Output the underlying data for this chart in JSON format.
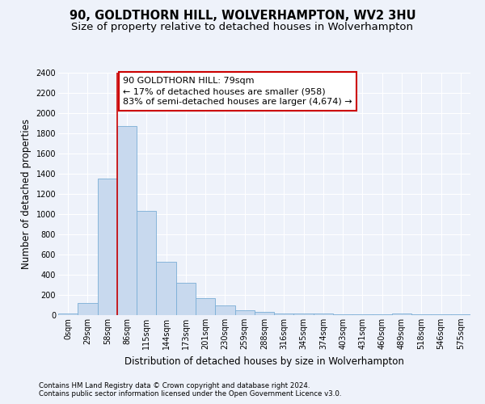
{
  "title": "90, GOLDTHORN HILL, WOLVERHAMPTON, WV2 3HU",
  "subtitle": "Size of property relative to detached houses in Wolverhampton",
  "xlabel": "Distribution of detached houses by size in Wolverhampton",
  "ylabel": "Number of detached properties",
  "footer_line1": "Contains HM Land Registry data © Crown copyright and database right 2024.",
  "footer_line2": "Contains public sector information licensed under the Open Government Licence v3.0.",
  "bar_labels": [
    "0sqm",
    "29sqm",
    "58sqm",
    "86sqm",
    "115sqm",
    "144sqm",
    "173sqm",
    "201sqm",
    "230sqm",
    "259sqm",
    "288sqm",
    "316sqm",
    "345sqm",
    "374sqm",
    "403sqm",
    "431sqm",
    "460sqm",
    "489sqm",
    "518sqm",
    "546sqm",
    "575sqm"
  ],
  "bar_values": [
    15,
    120,
    1350,
    1870,
    1030,
    530,
    320,
    165,
    95,
    50,
    30,
    20,
    18,
    15,
    10,
    8,
    5,
    15,
    5,
    5,
    10
  ],
  "bar_color": "#c8d9ee",
  "bar_edge_color": "#7aaed6",
  "ylim": [
    0,
    2400
  ],
  "yticks": [
    0,
    200,
    400,
    600,
    800,
    1000,
    1200,
    1400,
    1600,
    1800,
    2000,
    2200,
    2400
  ],
  "property_bin_index": 2,
  "vline_color": "#cc0000",
  "annotation_line1": "90 GOLDTHORN HILL: 79sqm",
  "annotation_line2": "← 17% of detached houses are smaller (958)",
  "annotation_line3": "83% of semi-detached houses are larger (4,674) →",
  "annotation_box_color": "#cc0000",
  "bg_color": "#eef2fa",
  "grid_color": "#ffffff",
  "title_fontsize": 10.5,
  "subtitle_fontsize": 9.5,
  "axis_label_fontsize": 8.5,
  "tick_fontsize": 7,
  "annotation_fontsize": 8,
  "footer_fontsize": 6.2
}
